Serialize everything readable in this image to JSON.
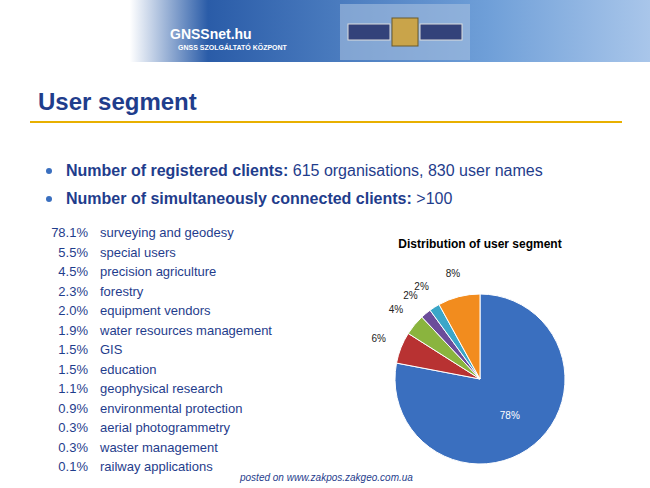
{
  "header": {
    "site": "GNSSnet.hu",
    "subtitle": "GNSS SZOLGÁLTATÓ KÖZPONT"
  },
  "title": "User segment",
  "bullets": [
    {
      "label": "Number of registered clients:",
      "text": "615 organisations, 830 user names"
    },
    {
      "label": "Number of simultaneously connected clients:",
      "text": ">100"
    }
  ],
  "segments": [
    {
      "share": "78.1%",
      "name": "surveying and geodesy"
    },
    {
      "share": "5.5%",
      "name": "special users"
    },
    {
      "share": "4.5%",
      "name": "precision agriculture"
    },
    {
      "share": "2.3%",
      "name": "forestry"
    },
    {
      "share": "2.0%",
      "name": "equipment vendors"
    },
    {
      "share": "1.9%",
      "name": "water resources management"
    },
    {
      "share": "1.5%",
      "name": "GIS"
    },
    {
      "share": "1.5%",
      "name": "education"
    },
    {
      "share": "1.1%",
      "name": "geophysical research"
    },
    {
      "share": "0.9%",
      "name": "environmental protection"
    },
    {
      "share": "0.3%",
      "name": "aerial photogrammetry"
    },
    {
      "share": "0.3%",
      "name": "waster management"
    },
    {
      "share": "0.1%",
      "name": "railway applications"
    }
  ],
  "chart_data": {
    "type": "pie",
    "title": "Distribution of user segment",
    "values": [
      78,
      6,
      4,
      2,
      2,
      8
    ],
    "value_labels": [
      "78%",
      "6%",
      "4%",
      "2%",
      "2%",
      "8%"
    ],
    "colors": [
      "#3a6fbf",
      "#b83232",
      "#8ab43e",
      "#6b4c9a",
      "#3aa6c8",
      "#f28c1e"
    ],
    "data_labels": true
  },
  "footer": "posted on www.zakpos.zakgeo.com.ua"
}
